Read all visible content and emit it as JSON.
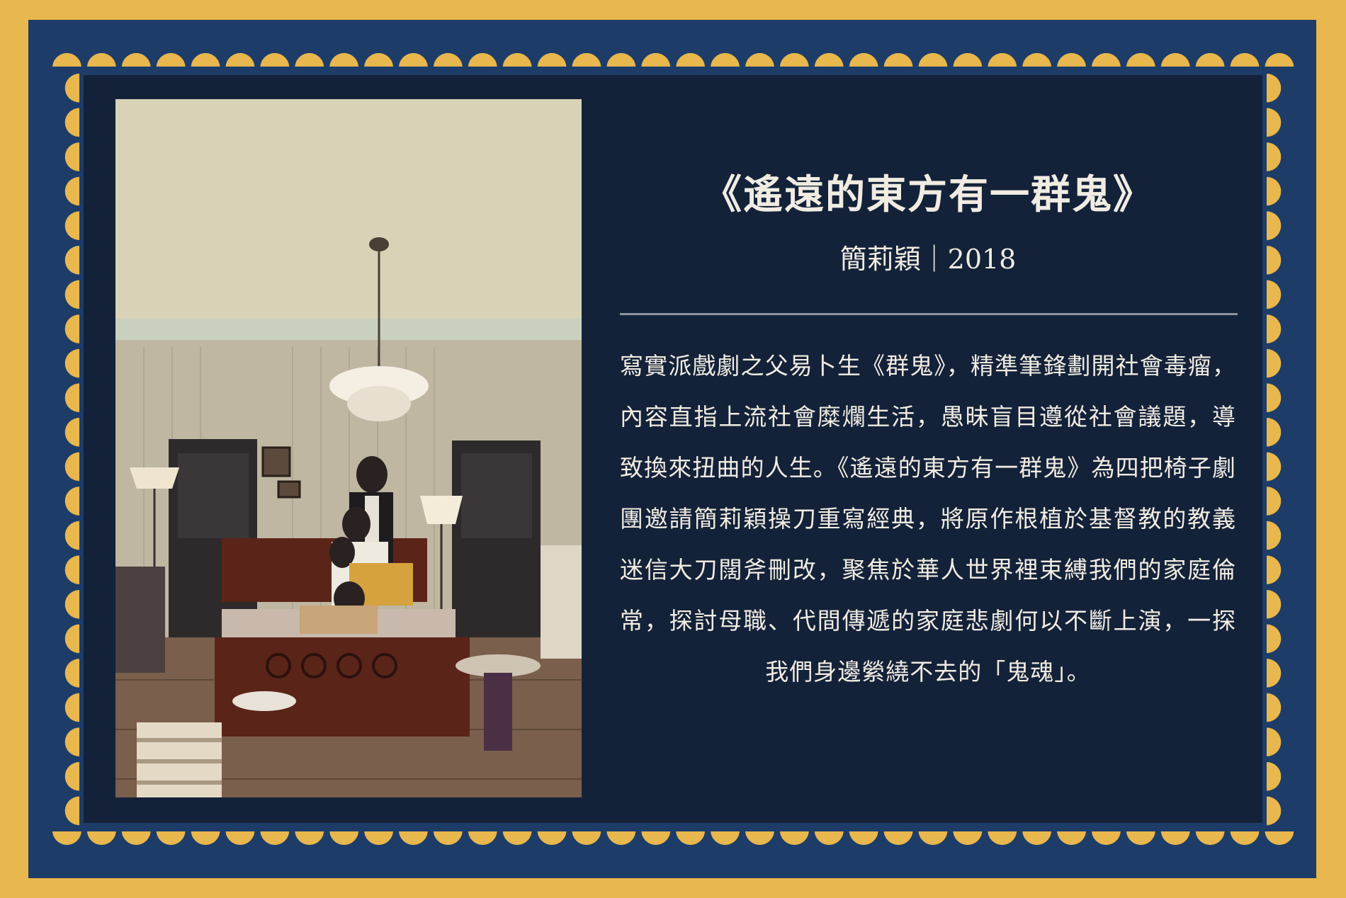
{
  "colors": {
    "background_gold": "#e8b74d",
    "frame_blue": "#1d3c68",
    "panel_navy": "#132239",
    "text_cream": "#f1ece2",
    "divider_gray": "#8f949c"
  },
  "card": {
    "title": "《遙遠的東方有一群鬼》",
    "subtitle": "簡莉穎｜2018",
    "description": "寫實派戲劇之父易卜生《群鬼》，精準筆鋒劃開社會毒瘤，內容直指上流社會糜爛生活，愚昧盲目遵從社會議題，導致換來扭曲的人生。《遙遠的東方有一群鬼》為四把椅子劇團邀請簡莉穎操刀重寫經典，將原作根植於基督教的教義迷信大刀闊斧刪改，聚焦於華人世界裡束縛我們的家庭倫常，探討母職、代間傳遞的家庭悲劇何以不斷上演，一探我們身邊縈繞不去的「鬼魂」。"
  },
  "photo": {
    "description_icon": "family-bedroom-photo"
  }
}
